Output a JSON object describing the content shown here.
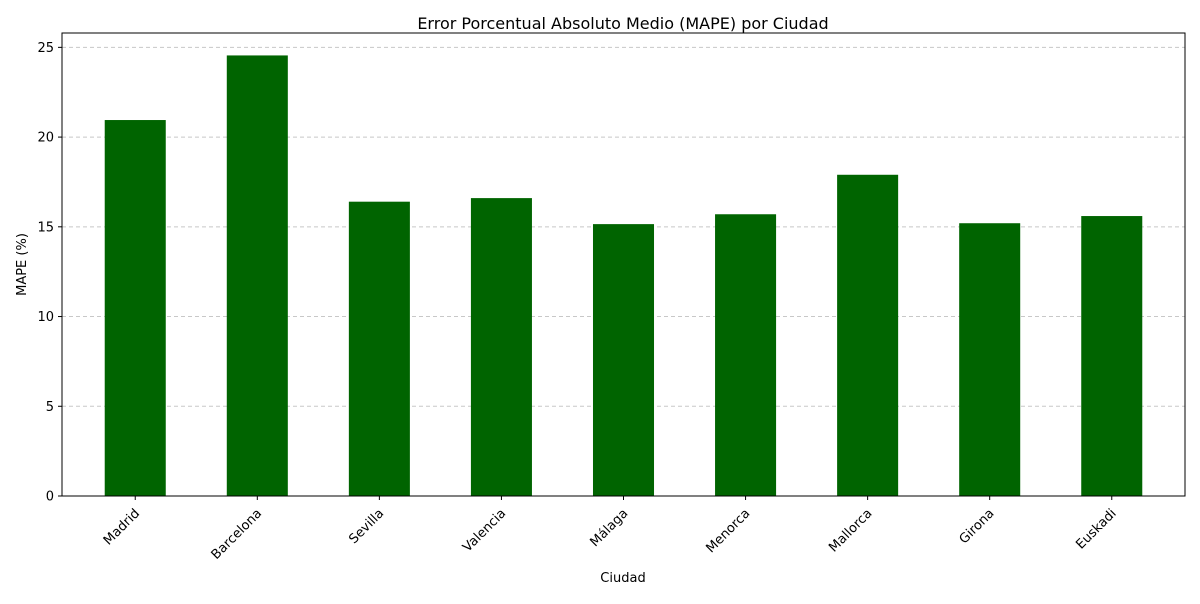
{
  "chart_data": {
    "type": "bar",
    "title": "Error Porcentual Absoluto Medio (MAPE) por Ciudad",
    "xlabel": "Ciudad",
    "ylabel": "MAPE (%)",
    "categories": [
      "Madrid",
      "Barcelona",
      "Sevilla",
      "Valencia",
      "Málaga",
      "Menorca",
      "Mallorca",
      "Girona",
      "Euskadi"
    ],
    "values": [
      20.95,
      24.55,
      16.4,
      16.6,
      15.15,
      15.7,
      17.9,
      15.2,
      15.6
    ],
    "ylim": [
      0,
      25.8
    ],
    "yticks": [
      0,
      5,
      10,
      15,
      20,
      25
    ],
    "grid": "y-dashed",
    "bar_color": "#006400",
    "grid_color": "#c8c8c8"
  }
}
